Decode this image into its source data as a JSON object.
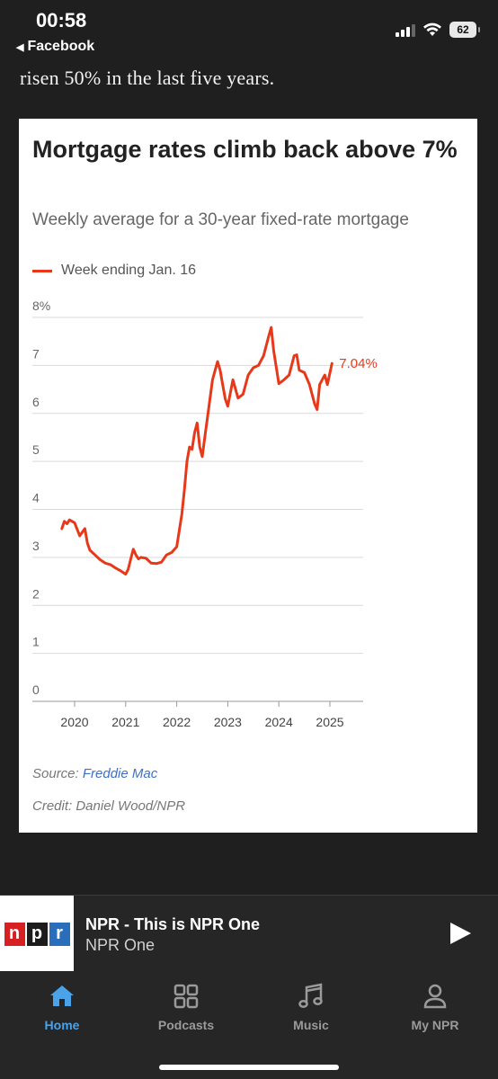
{
  "status_bar": {
    "time": "00:58",
    "back_label": "Facebook",
    "battery": "62"
  },
  "article": {
    "text_line": "risen 50% in the last five years."
  },
  "chart_card": {
    "title": "Mortgage rates climb back above 7%",
    "subtitle": "Weekly average for a 30-year fixed-rate mortgage",
    "legend_label": "Week ending Jan. 16",
    "source_prefix": "Source: ",
    "source_link": "Freddie Mac",
    "credit": "Credit: Daniel Wood/NPR"
  },
  "chart_data": {
    "type": "line",
    "title": "Mortgage rates climb back above 7%",
    "subtitle": "Weekly average for a 30-year fixed-rate mortgage",
    "xlabel": "",
    "ylabel": "",
    "xlim": [
      2019.6,
      2025.1
    ],
    "ylim": [
      0,
      8
    ],
    "x_ticks": [
      "2020",
      "2021",
      "2022",
      "2023",
      "2024",
      "2025"
    ],
    "y_ticks": [
      "0",
      "1",
      "2",
      "3",
      "4",
      "5",
      "6",
      "7",
      "8%"
    ],
    "grid": true,
    "line_color": "#e8381a",
    "end_label": "7.04%",
    "series": [
      {
        "name": "Week ending Jan. 16",
        "x": [
          2019.75,
          2019.8,
          2019.85,
          2019.9,
          2020.0,
          2020.1,
          2020.2,
          2020.25,
          2020.3,
          2020.4,
          2020.5,
          2020.6,
          2020.7,
          2020.8,
          2020.9,
          2021.0,
          2021.05,
          2021.1,
          2021.15,
          2021.2,
          2021.25,
          2021.3,
          2021.4,
          2021.5,
          2021.6,
          2021.7,
          2021.8,
          2021.9,
          2022.0,
          2022.1,
          2022.15,
          2022.2,
          2022.25,
          2022.3,
          2022.35,
          2022.4,
          2022.45,
          2022.5,
          2022.55,
          2022.6,
          2022.7,
          2022.8,
          2022.85,
          2022.9,
          2022.95,
          2023.0,
          2023.1,
          2023.2,
          2023.3,
          2023.4,
          2023.5,
          2023.6,
          2023.7,
          2023.8,
          2023.85,
          2023.9,
          2024.0,
          2024.1,
          2024.2,
          2024.3,
          2024.35,
          2024.4,
          2024.5,
          2024.6,
          2024.7,
          2024.75,
          2024.8,
          2024.9,
          2024.95,
          2025.04
        ],
        "values": [
          3.6,
          3.75,
          3.7,
          3.78,
          3.72,
          3.45,
          3.6,
          3.3,
          3.15,
          3.05,
          2.95,
          2.88,
          2.85,
          2.78,
          2.72,
          2.65,
          2.75,
          2.97,
          3.17,
          3.05,
          2.97,
          3.0,
          2.98,
          2.88,
          2.87,
          2.9,
          3.05,
          3.1,
          3.22,
          3.9,
          4.4,
          5.0,
          5.3,
          5.25,
          5.6,
          5.8,
          5.3,
          5.1,
          5.5,
          5.9,
          6.7,
          7.08,
          6.9,
          6.6,
          6.3,
          6.15,
          6.7,
          6.32,
          6.4,
          6.8,
          6.95,
          7.0,
          7.2,
          7.6,
          7.79,
          7.3,
          6.62,
          6.7,
          6.8,
          7.2,
          7.22,
          6.9,
          6.85,
          6.6,
          6.2,
          6.08,
          6.6,
          6.8,
          6.6,
          7.04
        ]
      }
    ]
  },
  "player": {
    "title": "NPR - This is NPR One",
    "subtitle": "NPR One",
    "logo_letters": [
      "n",
      "p",
      "r"
    ]
  },
  "tabs": [
    {
      "label": "Home",
      "icon": "home-icon",
      "active": true
    },
    {
      "label": "Podcasts",
      "icon": "podcasts-grid-icon",
      "active": false
    },
    {
      "label": "Music",
      "icon": "music-note-icon",
      "active": false
    },
    {
      "label": "My NPR",
      "icon": "person-icon",
      "active": false
    }
  ],
  "colors": {
    "accent": "#4aa3e8",
    "chart_line": "#e8381a",
    "link": "#3f6fc6",
    "npr_red": "#d62021",
    "npr_blue": "#2a6ebb"
  }
}
